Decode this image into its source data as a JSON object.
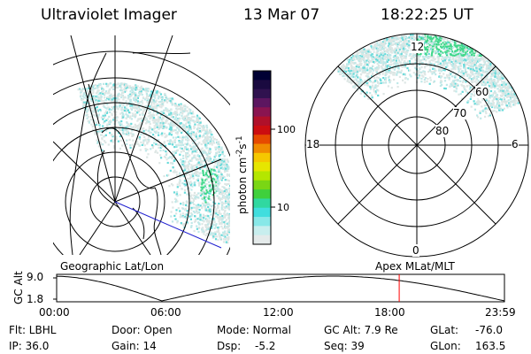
{
  "header": {
    "instrument": "Ultraviolet Imager",
    "date": "13 Mar 07",
    "time": "18:22:25 UT"
  },
  "colorbar": {
    "unit_label_main": "photon cm",
    "unit_sup1": "-2",
    "unit_mid": "s",
    "unit_sup2": "-1",
    "ticks": [
      "100",
      "10"
    ],
    "colors": [
      "#000033",
      "#1a0a40",
      "#30124f",
      "#5c1660",
      "#8a1450",
      "#b0102a",
      "#cc0d10",
      "#e64a00",
      "#f08c00",
      "#f5c800",
      "#e6e600",
      "#b4e600",
      "#7ad614",
      "#3fd03c",
      "#30d8a0",
      "#40dede",
      "#88e8e8",
      "#c8eeee",
      "#e4eaea"
    ]
  },
  "left_panel": {
    "label": "Geographic Lat/Lon"
  },
  "right_panel": {
    "label": "Apex  MLat/MLT",
    "mlt_labels": {
      "top": "12",
      "bottom": "0",
      "left": "18",
      "right": "6"
    },
    "mlat_labels": [
      "60",
      "70",
      "80"
    ]
  },
  "timeline": {
    "ylabel": "GC Alt",
    "ytick_top": "9.0",
    "ytick_bottom": "1.8",
    "x_labels": [
      "00:00",
      "06:00",
      "12:00",
      "18:00",
      "23:59"
    ],
    "current_marker_fraction": 0.765,
    "marker_color": "#ff0000"
  },
  "info": {
    "flt": "Flt: LBHL",
    "ip": "IP: 36.0",
    "door": "Door: Open",
    "gain": "Gain: 14",
    "mode": "Mode: Normal",
    "dsp_label": "Dsp:",
    "dsp_value": "-5.2",
    "gc_alt": "GC Alt: 7.9 Re",
    "seq": "Seq: 39",
    "glat_label": "GLat:",
    "glat_value": "-76.0",
    "glon_label": "GLon:",
    "glon_value": "163.5"
  }
}
